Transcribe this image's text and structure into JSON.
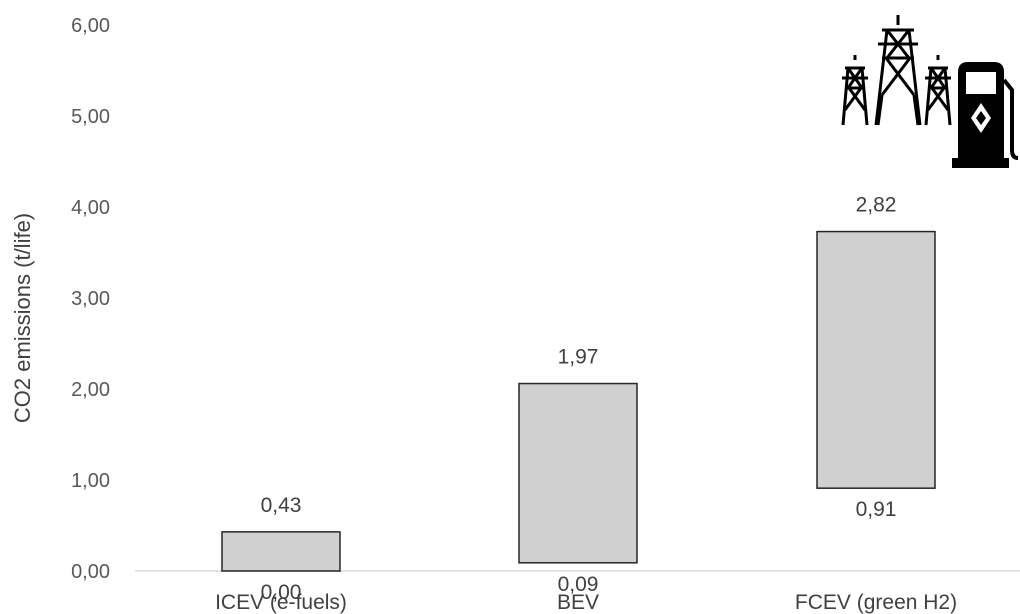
{
  "chart_data": {
    "type": "bar",
    "subtype": "floating-range",
    "title": "",
    "xlabel": "",
    "ylabel": "CO2 emissions (t/life)",
    "ylim": [
      0,
      6
    ],
    "y_ticks": [
      "0,00",
      "1,00",
      "2,00",
      "3,00",
      "4,00",
      "5,00",
      "6,00"
    ],
    "grid": false,
    "legend": "none",
    "categories": [
      "ICEV (e-fuels)",
      "BEV",
      "FCEV (green H2)"
    ],
    "series": [
      {
        "low": [
          0.0,
          0.09,
          0.91
        ],
        "high": [
          0.43,
          2.06,
          3.73
        ],
        "low_labels": [
          "0,00",
          "0,09",
          "0,91"
        ],
        "range_labels": [
          "0,43",
          "1,97",
          "2,82"
        ]
      }
    ],
    "bar_fill": "#d0d0d0",
    "bar_stroke": "#262626",
    "axis_color": "#d9d9d9",
    "icons": [
      "power-pylons-icon",
      "fuel-pump-icon"
    ]
  }
}
